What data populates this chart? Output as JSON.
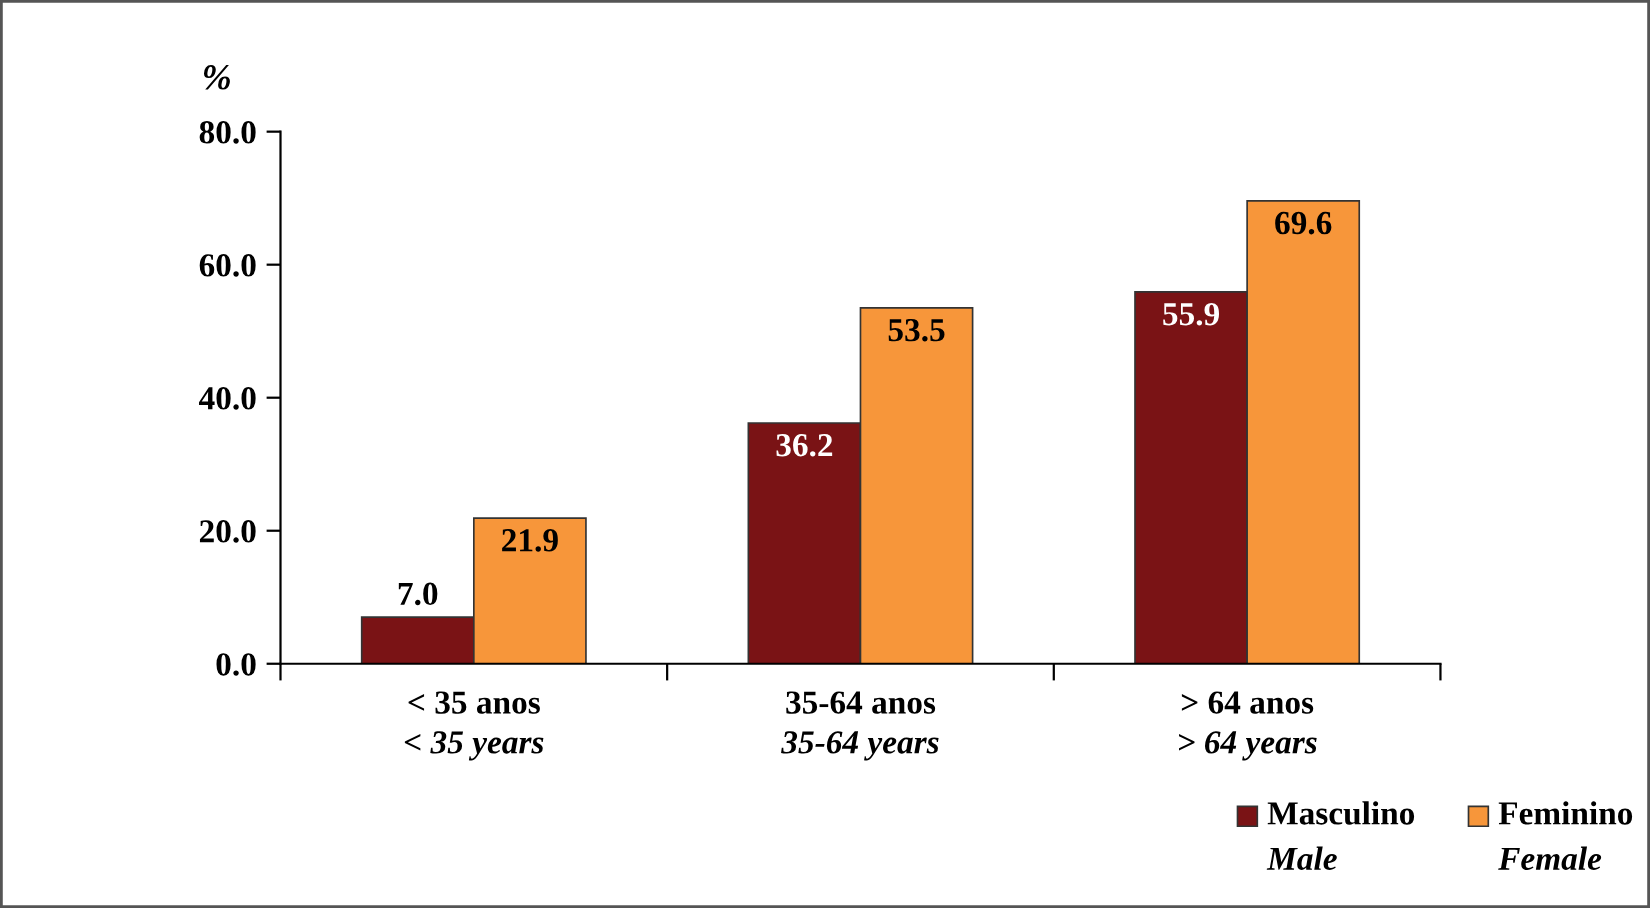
{
  "chart_data": {
    "type": "bar",
    "ylabel": "%",
    "categories": [
      "< 35 anos\n< 35 years",
      "35-64 anos\n35-64 years",
      "> 64 anos\n> 64 years"
    ],
    "series": [
      {
        "name": "Masculino\nMale",
        "color": "#7a1315",
        "values": [
          7.0,
          36.2,
          55.9
        ],
        "value_labels": [
          "7.0",
          "36.2",
          "55.9"
        ]
      },
      {
        "name": "Feminino\nFemale",
        "color": "#f7963a",
        "values": [
          21.9,
          53.5,
          69.6
        ],
        "value_labels": [
          "21.9",
          "53.5",
          "69.6"
        ]
      }
    ],
    "ylim": [
      0,
      80
    ],
    "yticks": [
      {
        "value": 0,
        "label": "0.0"
      },
      {
        "value": 20,
        "label": "20.0"
      },
      {
        "value": 40,
        "label": "40.0"
      },
      {
        "value": 60,
        "label": "60.0"
      },
      {
        "value": 80,
        "label": "80.0"
      }
    ],
    "legend": "bottom right",
    "grid": false
  }
}
